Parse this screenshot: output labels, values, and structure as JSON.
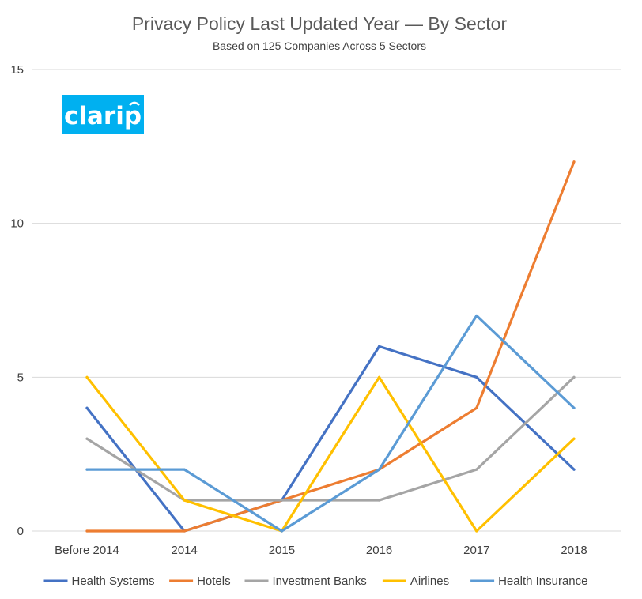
{
  "chart_data": {
    "type": "line",
    "title": "Privacy Policy Last Updated Year — By Sector",
    "subtitle": "Based on 125 Companies Across 5 Sectors",
    "categories": [
      "Before 2014",
      "2014",
      "2015",
      "2016",
      "2017",
      "2018"
    ],
    "ylim": [
      0,
      15
    ],
    "yticks": [
      0,
      5,
      10,
      15
    ],
    "grid": true,
    "legend_position": "bottom",
    "series": [
      {
        "name": "Health Systems",
        "color": "#4472C4",
        "values": [
          4,
          0,
          1,
          6,
          5,
          2
        ]
      },
      {
        "name": "Hotels",
        "color": "#ED7D31",
        "values": [
          0,
          0,
          1,
          2,
          4,
          12
        ]
      },
      {
        "name": "Investment Banks",
        "color": "#A5A5A5",
        "values": [
          3,
          1,
          1,
          1,
          2,
          5
        ]
      },
      {
        "name": "Airlines",
        "color": "#FFC000",
        "values": [
          5,
          1,
          0,
          5,
          0,
          3
        ]
      },
      {
        "name": "Health Insurance",
        "color": "#5B9BD5",
        "values": [
          2,
          2,
          0,
          2,
          7,
          4
        ]
      }
    ]
  },
  "logo": {
    "text": "clarip",
    "color": "#00B0F0"
  }
}
